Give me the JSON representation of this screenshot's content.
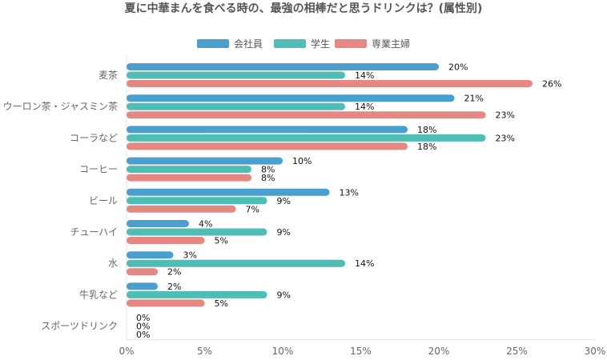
{
  "chart_data": {
    "type": "bar",
    "orientation": "horizontal",
    "title": "夏に中華まんを食べる時の、最強の相棒だと思うドリンクは？(属性別)",
    "categories": [
      "麦茶",
      "ウーロン茶・ジャスミン茶",
      "コーラなど",
      "コーヒー",
      "ビール",
      "チューハイ",
      "水",
      "牛乳など",
      "スポーツドリンク"
    ],
    "series": [
      {
        "name": "会社員",
        "color": "#4a9fce",
        "values": [
          20,
          21,
          18,
          10,
          13,
          4,
          3,
          2,
          0
        ]
      },
      {
        "name": "学生",
        "color": "#4fbdb5",
        "values": [
          14,
          14,
          23,
          8,
          9,
          9,
          14,
          9,
          0
        ]
      },
      {
        "name": "専業主婦",
        "color": "#e58783",
        "values": [
          26,
          23,
          18,
          8,
          7,
          5,
          2,
          5,
          0
        ]
      }
    ],
    "xlim": [
      0,
      30
    ],
    "xticks": [
      0,
      5,
      10,
      15,
      20,
      25,
      30
    ],
    "value_suffix": "%",
    "legend_position": "top-center",
    "grid": false
  }
}
